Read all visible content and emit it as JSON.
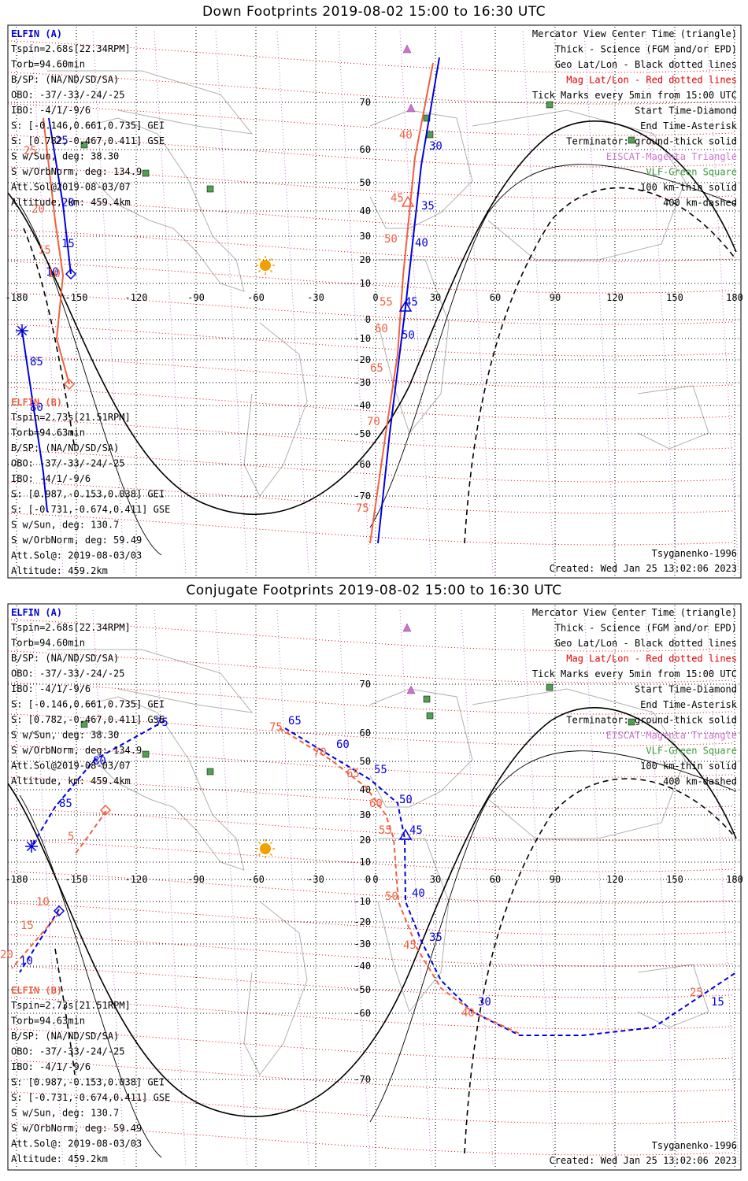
{
  "panels": [
    {
      "title": "Down Footprints 2019-08-02 15:00 to 16:30 UTC",
      "elfin_a": {
        "name": "ELFIN (A)",
        "lines": [
          "Tspin=2.68s[22.34RPM]",
          "Torb=94.60min",
          "B/SP: (NA/ND/SD/SA)",
          "OBO: -37/-33/-24/-25",
          "IBO: -4/1/-9/6",
          "S: [-0.146,0.661,0.735] GEI",
          "S: [0.782,-0.467,0.411] GSE",
          "S w/Sun, deg: 38.30",
          "S w/OrbNorm, deg: 134.9",
          "Att.Sol@2019-08-03/07",
          "Altitude, km: 459.4km"
        ]
      },
      "elfin_b": {
        "name": "ELFIN (B)",
        "lines": [
          "Tspin=2.73s[21.51RPM]",
          "Torb=94.63min",
          "B/SP: (NA/ND/SD/SA)",
          "OBO: -37/-33/-24/-25",
          "IBO: -4/1/-9/6",
          "S: [0.987,-0.153,0.038] GEI",
          "S: [-0.731,-0.674,0.411] GSE",
          "S w/Sun, deg: 130.7",
          "S w/OrbNorm, deg: 59.49",
          "Att.Sol@: 2019-08-03/03",
          "Altitude: 459.2km"
        ]
      },
      "legend": [
        {
          "text": "Mercator View Center Time (triangle)",
          "color": "#000000"
        },
        {
          "text": "Thick - Science (FGM and/or EPD)",
          "color": "#000000"
        },
        {
          "text": "Geo Lat/Lon - Black dotted lines",
          "color": "#000000"
        },
        {
          "text": "Mag Lat/Lon - Red dotted lines",
          "color": "#e00000"
        },
        {
          "text": "Tick Marks every 5min from 15:00 UTC",
          "color": "#000000"
        },
        {
          "text": "Start Time-Diamond",
          "color": "#000000"
        },
        {
          "text": "End Time-Asterisk",
          "color": "#000000"
        },
        {
          "text": "Terminator: ground-thick solid",
          "color": "#000000"
        },
        {
          "text": "EISCAT-Magenta Triangle",
          "color": "#d070d0"
        },
        {
          "text": "VLF-Green Square",
          "color": "#3a9a3a"
        },
        {
          "text": "100 km-thin solid",
          "color": "#000000"
        },
        {
          "text": "400 km-dashed",
          "color": "#000000"
        }
      ],
      "model": "Tsyganenko-1996",
      "created": "Created: Wed Jan 25 13:02:06 2023",
      "track_a_labels": [
        "25",
        "20",
        "15",
        "10",
        "50",
        "45",
        "40",
        "35",
        "30",
        "85",
        "80"
      ],
      "track_b_labels": [
        "25",
        "20",
        "15",
        "10",
        "40",
        "45",
        "50",
        "55",
        "60",
        "65",
        "70",
        "75"
      ]
    },
    {
      "title": "Conjugate Footprints 2019-08-02 15:00 to 16:30 UTC",
      "elfin_a": {
        "name": "ELFIN (A)",
        "lines": [
          "Tspin=2.68s[22.34RPM]",
          "Torb=94.60min",
          "B/SP: (NA/ND/SD/SA)",
          "OBO: -37/-33/-24/-25",
          "IBO: -4/1/-9/6",
          "S: [-0.146,0.661,0.735] GEI",
          "S: [0.782,-0.467,0.411] GSE",
          "S w/Sun, deg: 38.30",
          "S w/OrbNorm, deg: 134.9",
          "Att.Sol@2019-08-03/07",
          "Altitude, km: 459.4km"
        ]
      },
      "elfin_b": {
        "name": "ELFIN (B)",
        "lines": [
          "Tspin=2.73s[21.51RPM]",
          "Torb=94.63min",
          "B/SP: (NA/ND/SD/SA)",
          "OBO: -37/-33/-24/-25",
          "IBO: -4/1/-9/6",
          "S: [0.987,-0.153,0.038] GEI",
          "S: [-0.731,-0.674,0.411] GSE",
          "S w/Sun, deg: 130.7",
          "S w/OrbNorm, deg: 59.49",
          "Att.Sol@: 2019-08-03/03",
          "Altitude: 459.2km"
        ]
      },
      "legend": [
        {
          "text": "Mercator View Center Time (triangle)",
          "color": "#000000"
        },
        {
          "text": "Thick - Science (FGM and/or EPD)",
          "color": "#000000"
        },
        {
          "text": "Geo Lat/Lon - Black dotted lines",
          "color": "#000000"
        },
        {
          "text": "Mag Lat/Lon - Red dotted lines",
          "color": "#e00000"
        },
        {
          "text": "Tick Marks every 5min from 15:00 UTC",
          "color": "#000000"
        },
        {
          "text": "Start Time-Diamond",
          "color": "#000000"
        },
        {
          "text": "End Time-Asterisk",
          "color": "#000000"
        },
        {
          "text": "Terminator: ground-thick solid",
          "color": "#000000"
        },
        {
          "text": "EISCAT-Magenta Triangle",
          "color": "#d070d0"
        },
        {
          "text": "VLF-Green Square",
          "color": "#3a9a3a"
        },
        {
          "text": "100 km-thin solid",
          "color": "#000000"
        },
        {
          "text": "400 km-dashed",
          "color": "#000000"
        }
      ],
      "model": "Tsyganenko-1996",
      "created": "Created: Wed Jan 25 13:02:06 2023",
      "track_a_labels": [
        "85",
        "80",
        "75",
        "65",
        "60",
        "55",
        "50",
        "45",
        "40",
        "35",
        "30",
        "15",
        "10"
      ],
      "track_b_labels": [
        "75",
        "70",
        "65",
        "60",
        "55",
        "50",
        "45",
        "40",
        "25",
        "20",
        "15",
        "10",
        "5"
      ]
    }
  ],
  "lon_ticks": [
    "-180",
    "-150",
    "-120",
    "-90",
    "-60",
    "-30",
    "0",
    "30",
    "60",
    "90",
    "120",
    "150",
    "180"
  ],
  "lat_ticks": [
    "70",
    "60",
    "50",
    "40",
    "30",
    "20",
    "10",
    "0",
    "-10",
    "-20",
    "-30",
    "-40",
    "-50",
    "-60",
    "-70"
  ],
  "colors": {
    "elfin_a": "#0000dd",
    "elfin_b": "#f06040",
    "mag_grid": "#e00000",
    "geo_grid": "#000000",
    "eiscat": "#d070d0",
    "vlf": "#3a9a3a",
    "sun": "#f0a000",
    "coast": "#b0b0b0"
  }
}
